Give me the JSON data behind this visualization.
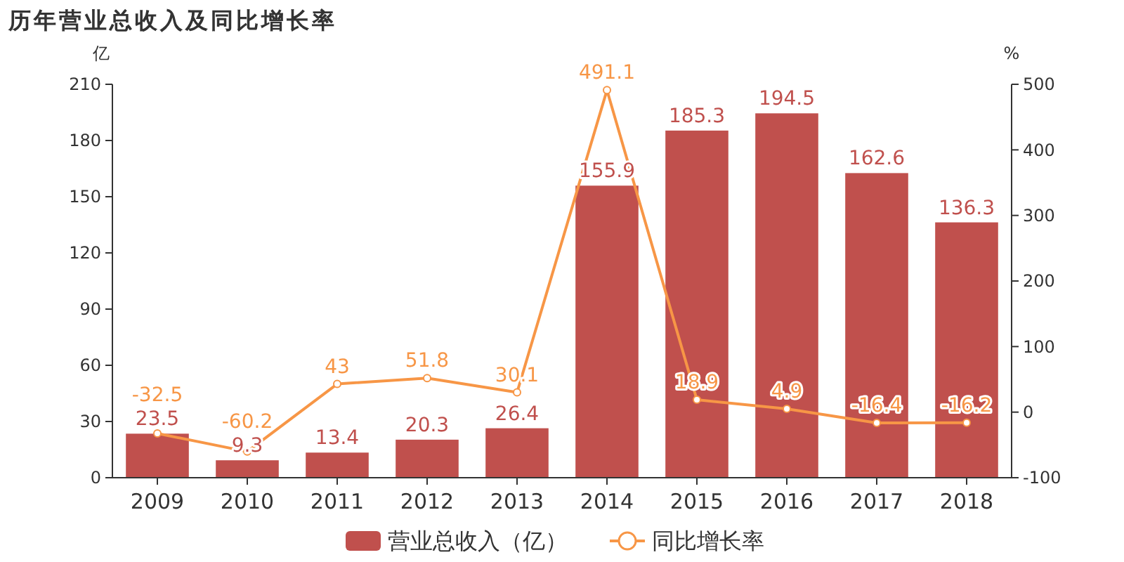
{
  "chart_data": {
    "type": "bar",
    "title": "历年营业总收入及同比增长率",
    "ylabel": "亿",
    "y2label": "%",
    "categories": [
      "2009",
      "2010",
      "2011",
      "2012",
      "2013",
      "2014",
      "2015",
      "2016",
      "2017",
      "2018"
    ],
    "series": [
      {
        "name": "营业总收入（亿）",
        "color": "#c0504d",
        "values": [
          23.5,
          9.3,
          13.4,
          20.3,
          26.4,
          155.9,
          185.3,
          194.5,
          162.6,
          136.3
        ]
      },
      {
        "name": "同比增长率",
        "type": "line",
        "axis": "y2",
        "color": "#f79646",
        "marker": "circle",
        "values": [
          -32.5,
          -60.2,
          43,
          51.8,
          30.1,
          491.1,
          18.9,
          4.9,
          -16.4,
          -16.2
        ]
      }
    ],
    "ylim": [
      0,
      210
    ],
    "yticks": [
      0,
      30,
      60,
      90,
      120,
      150,
      180,
      210
    ],
    "y2lim": [
      -100,
      500
    ],
    "y2ticks": [
      -100,
      0,
      100,
      200,
      300,
      400,
      500
    ],
    "data_labels": true,
    "grid": false,
    "legend": "bottom"
  }
}
